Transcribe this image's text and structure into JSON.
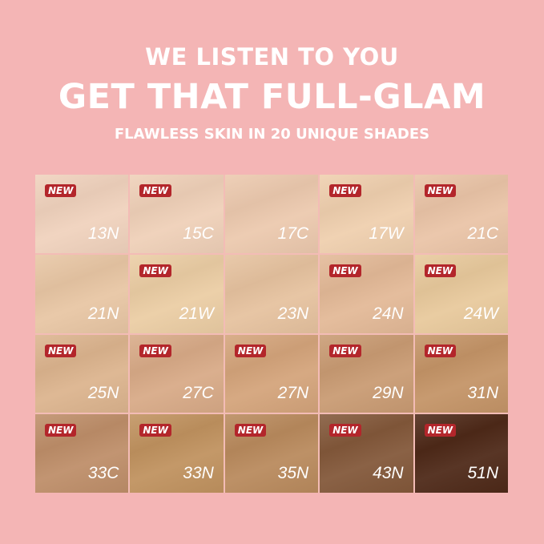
{
  "header": {
    "line1": "WE LISTEN TO YOU",
    "line2": "GET THAT FULL-GLAM",
    "line3": "FLAWLESS SKIN IN 20 UNIQUE SHADES"
  },
  "badge_label": "NEW",
  "colors": {
    "background": "#f4b5b5",
    "badge": "#b3262b"
  },
  "shades": [
    {
      "name": "13N",
      "new": true,
      "color": "#f0d2bd"
    },
    {
      "name": "15C",
      "new": true,
      "color": "#efd0b8"
    },
    {
      "name": "17C",
      "new": false,
      "color": "#ecc9ae"
    },
    {
      "name": "17W",
      "new": true,
      "color": "#efcfae"
    },
    {
      "name": "21C",
      "new": true,
      "color": "#eac4a7"
    },
    {
      "name": "21N",
      "new": false,
      "color": "#e8c6a4"
    },
    {
      "name": "21W",
      "new": true,
      "color": "#ebcda4"
    },
    {
      "name": "23N",
      "new": false,
      "color": "#e6c29f"
    },
    {
      "name": "24N",
      "new": true,
      "color": "#e3b997"
    },
    {
      "name": "24W",
      "new": true,
      "color": "#e8c99c"
    },
    {
      "name": "25N",
      "new": true,
      "color": "#dcb48e"
    },
    {
      "name": "27C",
      "new": true,
      "color": "#d8aa87"
    },
    {
      "name": "27N",
      "new": true,
      "color": "#d4a47b"
    },
    {
      "name": "29N",
      "new": true,
      "color": "#c99b73"
    },
    {
      "name": "31N",
      "new": true,
      "color": "#c49467"
    },
    {
      "name": "33C",
      "new": true,
      "color": "#be8e69"
    },
    {
      "name": "33N",
      "new": true,
      "color": "#c0925f"
    },
    {
      "name": "35N",
      "new": true,
      "color": "#b98a5d"
    },
    {
      "name": "43N",
      "new": true,
      "color": "#83583a"
    },
    {
      "name": "51N",
      "new": true,
      "color": "#4e2918"
    }
  ]
}
